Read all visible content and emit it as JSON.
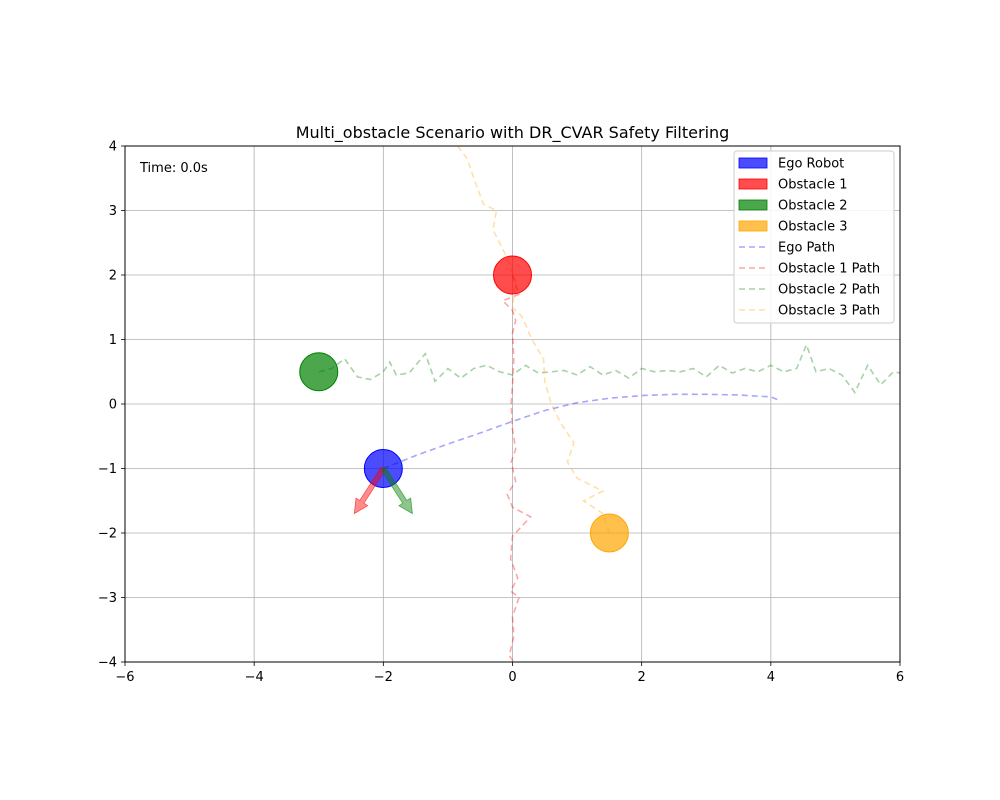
{
  "chart_data": {
    "type": "scatter",
    "title": "Multi_obstacle Scenario with DR_CVAR Safety Filtering",
    "xlabel": "",
    "ylabel": "",
    "xlim": [
      -6,
      6
    ],
    "ylim": [
      -4,
      4
    ],
    "x_ticks": [
      -6,
      -4,
      -2,
      0,
      2,
      4,
      6
    ],
    "y_ticks": [
      -4,
      -3,
      -2,
      -1,
      0,
      1,
      2,
      3,
      4
    ],
    "x_tick_labels": [
      "−6",
      "−4",
      "−2",
      "0",
      "2",
      "4",
      "6"
    ],
    "y_tick_labels": [
      "−4",
      "−3",
      "−2",
      "−1",
      "0",
      "1",
      "2",
      "3",
      "4"
    ],
    "grid": true,
    "legend_position": "top-right",
    "time_label": "Time: 0.0s",
    "agents": [
      {
        "name": "Ego Robot",
        "x": -2.0,
        "y": -1.0,
        "color": "#0000ff"
      },
      {
        "name": "Obstacle 1",
        "x": 0.0,
        "y": 2.0,
        "color": "#ff0000"
      },
      {
        "name": "Obstacle 2",
        "x": -3.0,
        "y": 0.5,
        "color": "#008000"
      },
      {
        "name": "Obstacle 3",
        "x": 1.5,
        "y": -2.0,
        "color": "#ffa500"
      }
    ],
    "arrows": [
      {
        "color": "#ff0000",
        "from": [
          -2.0,
          -1.0
        ],
        "to": [
          -2.45,
          -1.7
        ]
      },
      {
        "color": "#008000",
        "from": [
          -2.0,
          -1.0
        ],
        "to": [
          -1.55,
          -1.7
        ]
      }
    ],
    "paths": [
      {
        "name": "Ego Path",
        "color": "#0000ff",
        "points": [
          [
            -2.0,
            -1.0
          ],
          [
            -1.5,
            -0.8
          ],
          [
            -1.0,
            -0.62
          ],
          [
            -0.5,
            -0.45
          ],
          [
            0.0,
            -0.27
          ],
          [
            0.5,
            -0.1
          ],
          [
            1.0,
            0.02
          ],
          [
            1.5,
            0.09
          ],
          [
            2.0,
            0.13
          ],
          [
            2.5,
            0.15
          ],
          [
            3.0,
            0.15
          ],
          [
            3.5,
            0.14
          ],
          [
            4.0,
            0.11
          ],
          [
            4.15,
            0.05
          ]
        ]
      },
      {
        "name": "Obstacle 1 Path",
        "color": "#ff0000",
        "points": [
          [
            0.0,
            2.0
          ],
          [
            0.1,
            1.7
          ],
          [
            -0.15,
            1.6
          ],
          [
            0.0,
            1.45
          ],
          [
            0.05,
            1.3
          ],
          [
            0.0,
            1.1
          ],
          [
            0.02,
            0.7
          ],
          [
            0.0,
            0.3
          ],
          [
            -0.02,
            0.0
          ],
          [
            0.0,
            -0.4
          ],
          [
            0.05,
            -0.7
          ],
          [
            -0.02,
            -0.9
          ],
          [
            0.05,
            -1.2
          ],
          [
            -0.08,
            -1.4
          ],
          [
            0.0,
            -1.6
          ],
          [
            0.28,
            -1.75
          ],
          [
            0.0,
            -2.05
          ],
          [
            -0.03,
            -2.4
          ],
          [
            0.08,
            -2.7
          ],
          [
            -0.03,
            -2.9
          ],
          [
            0.1,
            -3.0
          ],
          [
            0.0,
            -3.3
          ],
          [
            0.02,
            -3.6
          ],
          [
            -0.05,
            -3.9
          ],
          [
            0.02,
            -4.0
          ]
        ]
      },
      {
        "name": "Obstacle 2 Path",
        "color": "#008000",
        "points": [
          [
            -3.0,
            0.5
          ],
          [
            -2.8,
            0.55
          ],
          [
            -2.6,
            0.7
          ],
          [
            -2.4,
            0.42
          ],
          [
            -2.2,
            0.38
          ],
          [
            -2.0,
            0.5
          ],
          [
            -1.9,
            0.65
          ],
          [
            -1.8,
            0.45
          ],
          [
            -1.6,
            0.48
          ],
          [
            -1.35,
            0.78
          ],
          [
            -1.2,
            0.35
          ],
          [
            -1.0,
            0.55
          ],
          [
            -0.8,
            0.4
          ],
          [
            -0.6,
            0.55
          ],
          [
            -0.4,
            0.6
          ],
          [
            -0.2,
            0.5
          ],
          [
            0.0,
            0.45
          ],
          [
            0.2,
            0.6
          ],
          [
            0.4,
            0.48
          ],
          [
            0.6,
            0.5
          ],
          [
            0.8,
            0.52
          ],
          [
            1.0,
            0.45
          ],
          [
            1.2,
            0.58
          ],
          [
            1.4,
            0.45
          ],
          [
            1.6,
            0.52
          ],
          [
            1.8,
            0.4
          ],
          [
            2.0,
            0.55
          ],
          [
            2.2,
            0.5
          ],
          [
            2.4,
            0.52
          ],
          [
            2.6,
            0.5
          ],
          [
            2.8,
            0.55
          ],
          [
            3.0,
            0.42
          ],
          [
            3.2,
            0.6
          ],
          [
            3.4,
            0.48
          ],
          [
            3.6,
            0.55
          ],
          [
            3.8,
            0.5
          ],
          [
            4.0,
            0.6
          ],
          [
            4.2,
            0.5
          ],
          [
            4.4,
            0.55
          ],
          [
            4.55,
            0.92
          ],
          [
            4.7,
            0.5
          ],
          [
            4.9,
            0.55
          ],
          [
            5.1,
            0.45
          ],
          [
            5.3,
            0.18
          ],
          [
            5.5,
            0.6
          ],
          [
            5.7,
            0.3
          ],
          [
            5.9,
            0.5
          ],
          [
            6.0,
            0.48
          ]
        ]
      },
      {
        "name": "Obstacle 3 Path",
        "color": "#ffa500",
        "points": [
          [
            1.5,
            -2.0
          ],
          [
            1.4,
            -1.7
          ],
          [
            1.1,
            -1.5
          ],
          [
            1.4,
            -1.35
          ],
          [
            1.0,
            -1.15
          ],
          [
            0.85,
            -0.9
          ],
          [
            0.95,
            -0.6
          ],
          [
            0.75,
            -0.3
          ],
          [
            0.6,
            0.0
          ],
          [
            0.5,
            0.35
          ],
          [
            0.48,
            0.7
          ],
          [
            0.3,
            1.0
          ],
          [
            0.15,
            1.35
          ],
          [
            0.0,
            1.5
          ],
          [
            0.05,
            1.9
          ],
          [
            -0.1,
            2.3
          ],
          [
            -0.3,
            2.7
          ],
          [
            -0.25,
            3.0
          ],
          [
            -0.45,
            3.1
          ],
          [
            -0.6,
            3.5
          ],
          [
            -0.7,
            3.8
          ],
          [
            -0.85,
            4.0
          ]
        ]
      }
    ]
  }
}
